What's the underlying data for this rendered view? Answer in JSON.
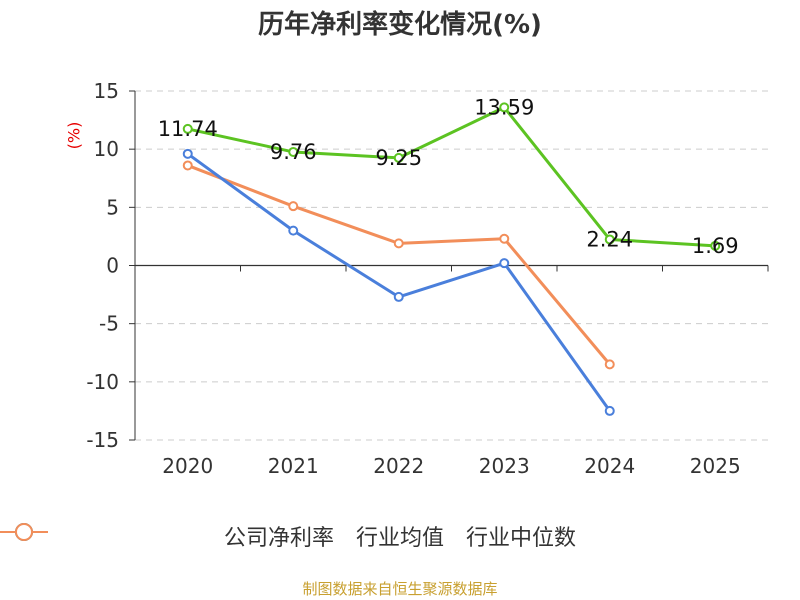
{
  "title": "历年净利率变化情况(%)",
  "source_note": "制图数据来自恒生聚源数据库",
  "colors": {
    "company": "#5cc322",
    "industry_avg": "#4a7fdb",
    "industry_median": "#f28e5a"
  },
  "chart_data": {
    "type": "line",
    "title": "历年净利率变化情况(%)",
    "ylabel": "(%)",
    "xlabel": "",
    "categories": [
      "2020",
      "2021",
      "2022",
      "2023",
      "2024",
      "2025"
    ],
    "ylim": [
      -15,
      15
    ],
    "yticks": [
      15,
      10,
      5,
      0,
      -5,
      -10,
      -15
    ],
    "grid": true,
    "legend_position": "bottom",
    "series": [
      {
        "name": "公司净利率",
        "values": [
          11.74,
          9.76,
          9.25,
          13.59,
          2.24,
          1.69
        ],
        "labeled": true
      },
      {
        "name": "行业均值",
        "values": [
          9.6,
          3.0,
          -2.7,
          0.2,
          -12.5,
          null
        ],
        "labeled": false
      },
      {
        "name": "行业中位数",
        "values": [
          8.6,
          5.1,
          1.9,
          2.3,
          -8.5,
          null
        ],
        "labeled": false
      }
    ]
  }
}
